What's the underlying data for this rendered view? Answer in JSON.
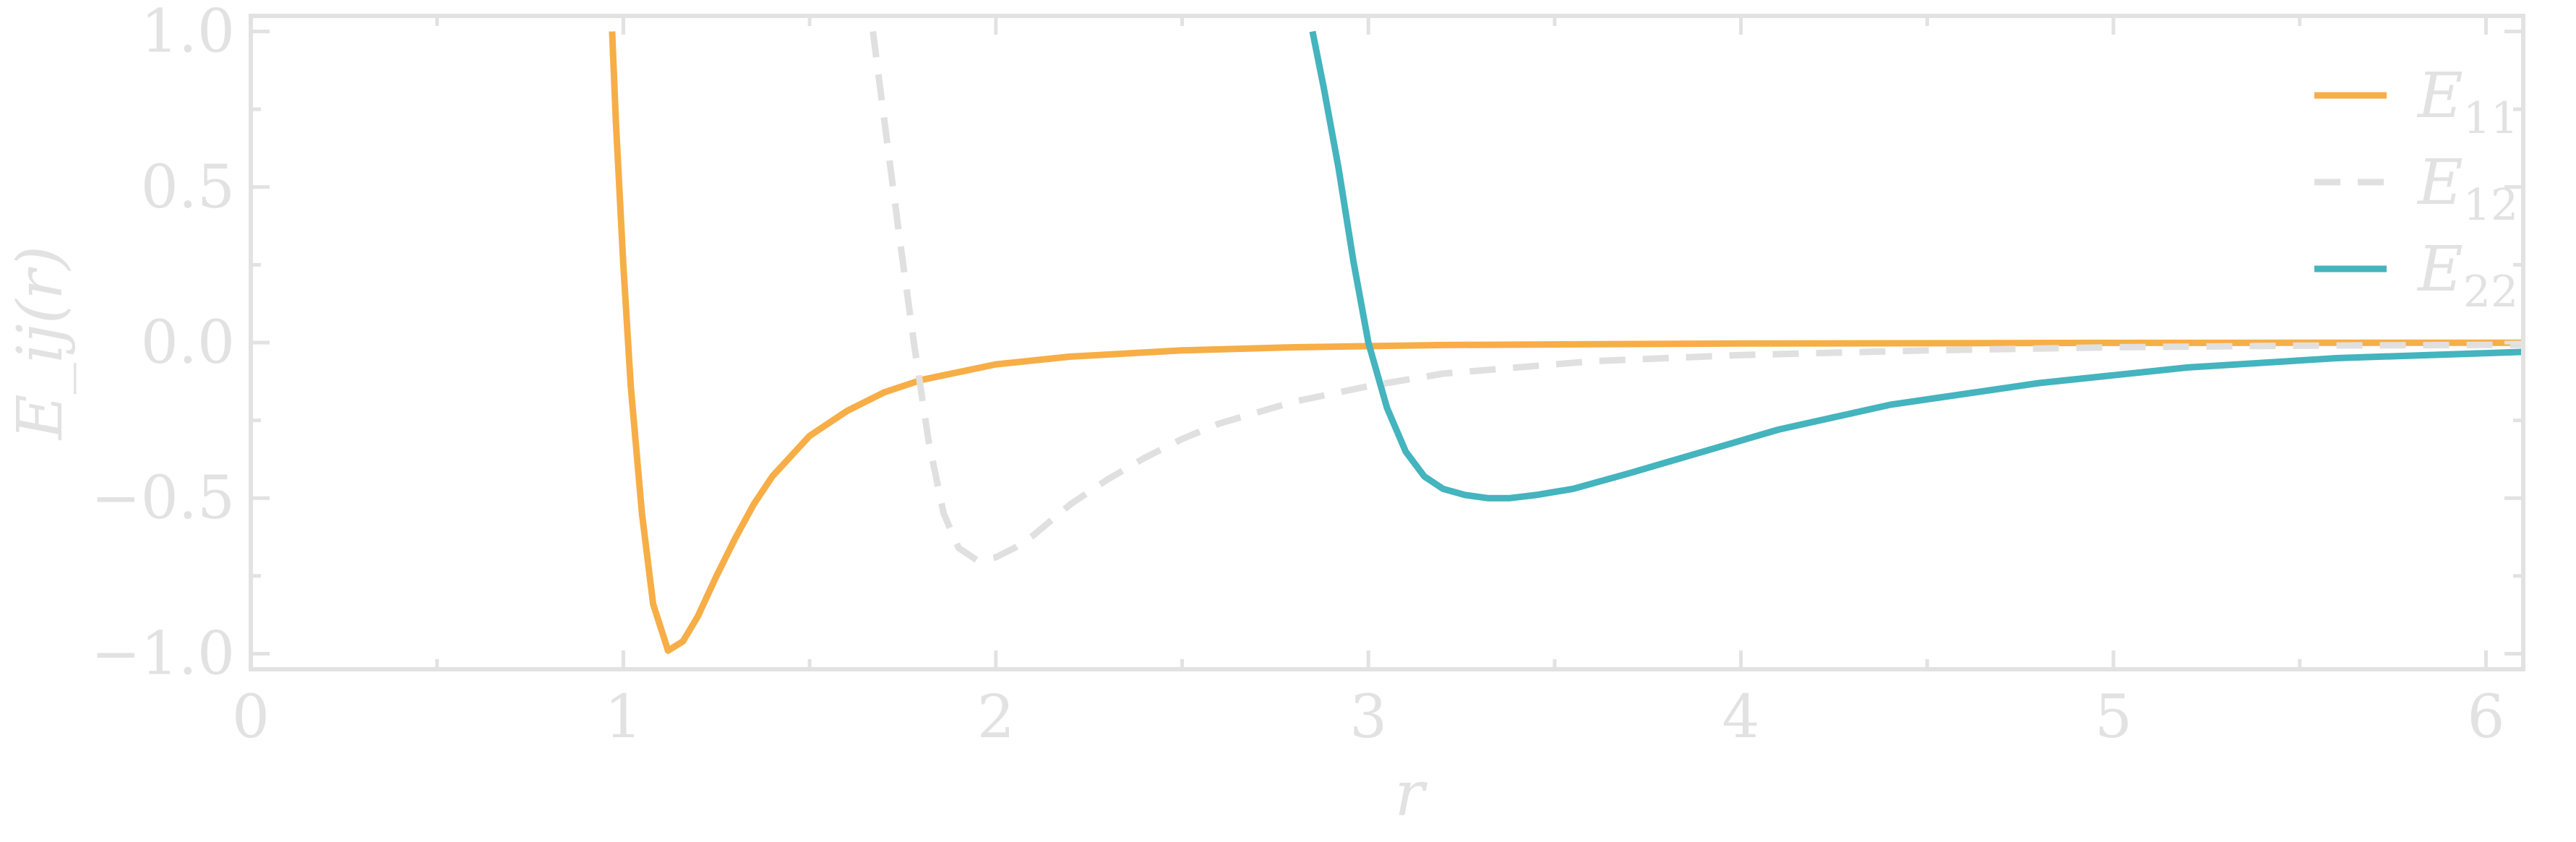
{
  "chart_data": {
    "type": "line",
    "xlabel": "r",
    "ylabel": "E_ij(r)",
    "xlim": [
      0,
      6.1
    ],
    "ylim": [
      -1.05,
      1.05
    ],
    "x_ticks": [
      0,
      1,
      2,
      3,
      4,
      5,
      6
    ],
    "x_tick_labels": [
      "0",
      "1",
      "2",
      "3",
      "4",
      "5",
      "6"
    ],
    "y_ticks": [
      -1.0,
      -0.5,
      0.0,
      0.5,
      1.0
    ],
    "y_tick_labels": [
      "−1.0",
      "−0.5",
      "0.0",
      "0.5",
      "1.0"
    ],
    "grid": false,
    "legend_position": "top-right",
    "series": [
      {
        "name": "E11",
        "label_main": "E",
        "label_sub": "11",
        "color": "#f7ae47",
        "style": "solid",
        "x": [
          0.97,
          0.98,
          1.0,
          1.02,
          1.05,
          1.08,
          1.12,
          1.16,
          1.2,
          1.25,
          1.3,
          1.35,
          1.4,
          1.5,
          1.6,
          1.7,
          1.8,
          2.0,
          2.2,
          2.5,
          2.8,
          3.2,
          3.6,
          4.0,
          5.0,
          6.1
        ],
        "y": [
          1.0,
          0.71,
          0.25,
          -0.14,
          -0.55,
          -0.84,
          -0.99,
          -0.96,
          -0.88,
          -0.75,
          -0.63,
          -0.52,
          -0.43,
          -0.3,
          -0.22,
          -0.16,
          -0.12,
          -0.07,
          -0.045,
          -0.025,
          -0.015,
          -0.008,
          -0.005,
          -0.003,
          -0.001,
          -0.0005
        ]
      },
      {
        "name": "E12",
        "label_main": "E",
        "label_sub": "12",
        "color": "#e0e0e0",
        "style": "dashed",
        "x": [
          1.67,
          1.7,
          1.74,
          1.78,
          1.82,
          1.86,
          1.9,
          1.95,
          2.0,
          2.05,
          2.1,
          2.2,
          2.3,
          2.4,
          2.5,
          2.6,
          2.8,
          3.0,
          3.2,
          3.6,
          4.0,
          4.5,
          5.0,
          5.5,
          6.1
        ],
        "y": [
          1.0,
          0.72,
          0.35,
          0.0,
          -0.32,
          -0.55,
          -0.66,
          -0.7,
          -0.69,
          -0.66,
          -0.62,
          -0.52,
          -0.44,
          -0.37,
          -0.31,
          -0.26,
          -0.19,
          -0.14,
          -0.1,
          -0.06,
          -0.04,
          -0.025,
          -0.015,
          -0.01,
          -0.007
        ]
      },
      {
        "name": "E22",
        "label_main": "E",
        "label_sub": "22",
        "color": "#44b4be",
        "style": "solid",
        "x": [
          2.85,
          2.88,
          2.92,
          2.96,
          3.0,
          3.05,
          3.1,
          3.15,
          3.2,
          3.26,
          3.32,
          3.38,
          3.45,
          3.55,
          3.7,
          3.9,
          4.1,
          4.4,
          4.8,
          5.2,
          5.6,
          6.1
        ],
        "y": [
          1.0,
          0.82,
          0.56,
          0.26,
          0.0,
          -0.21,
          -0.35,
          -0.43,
          -0.47,
          -0.49,
          -0.5,
          -0.5,
          -0.49,
          -0.47,
          -0.42,
          -0.35,
          -0.28,
          -0.2,
          -0.13,
          -0.08,
          -0.05,
          -0.03
        ]
      }
    ]
  }
}
